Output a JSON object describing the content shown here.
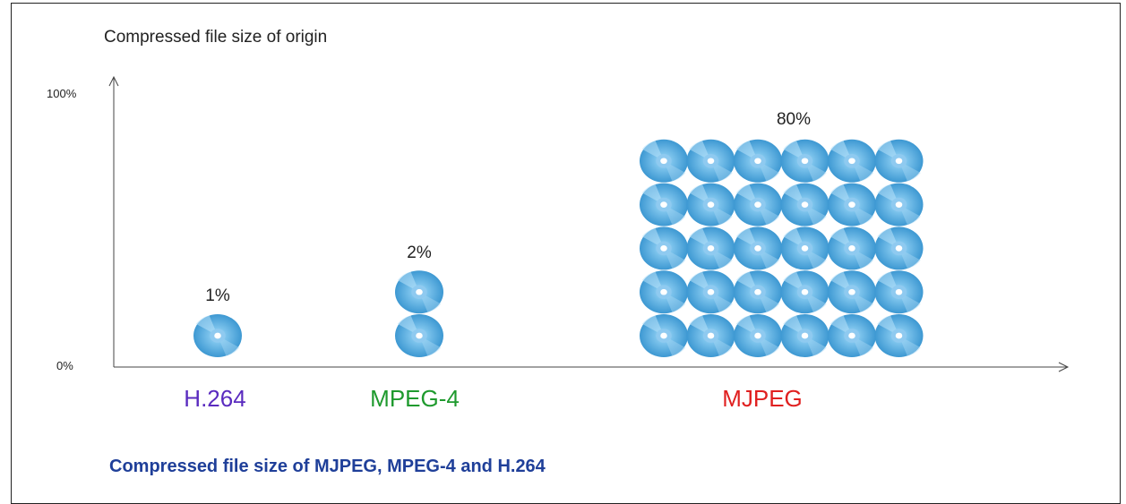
{
  "chart_data": {
    "type": "bar",
    "title": "Compressed file size of MJPEG, MPEG-4 and H.264",
    "ylabel": "Compressed file size of origin",
    "ylim": [
      0,
      100
    ],
    "yticks": [
      "0%",
      "100%"
    ],
    "categories": [
      "H.264",
      "MPEG-4",
      "MJPEG"
    ],
    "values": [
      1,
      2,
      80
    ],
    "value_labels": [
      "1%",
      "2%",
      "80%"
    ],
    "disc_icons": [
      {
        "cols": 1,
        "rows": 1
      },
      {
        "cols": 1,
        "rows": 2
      },
      {
        "cols": 6,
        "rows": 5
      }
    ],
    "category_colors": [
      "#5a2bbf",
      "#1f9a2e",
      "#e02020"
    ],
    "caption_color": "#1f3f99",
    "disc_color": "#4aa6dc",
    "grid": false
  }
}
